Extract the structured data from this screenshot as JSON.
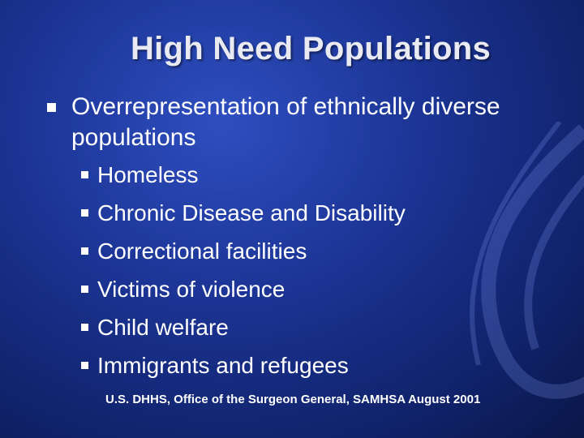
{
  "slide": {
    "title": "High Need Populations",
    "main_bullet": "Overrepresentation of ethnically diverse populations",
    "sub_bullets": [
      "Homeless",
      "Chronic Disease and Disability",
      "Correctional facilities",
      "Victims of violence",
      "Child welfare",
      "Immigrants and refugees"
    ],
    "citation": "U.S. DHHS, Office of the Surgeon General, SAMHSA August 2001"
  },
  "colors": {
    "background_center": "#2f4fc0",
    "background_edge": "#0a1748",
    "text": "#ffffff",
    "title": "#e9eaf2"
  }
}
